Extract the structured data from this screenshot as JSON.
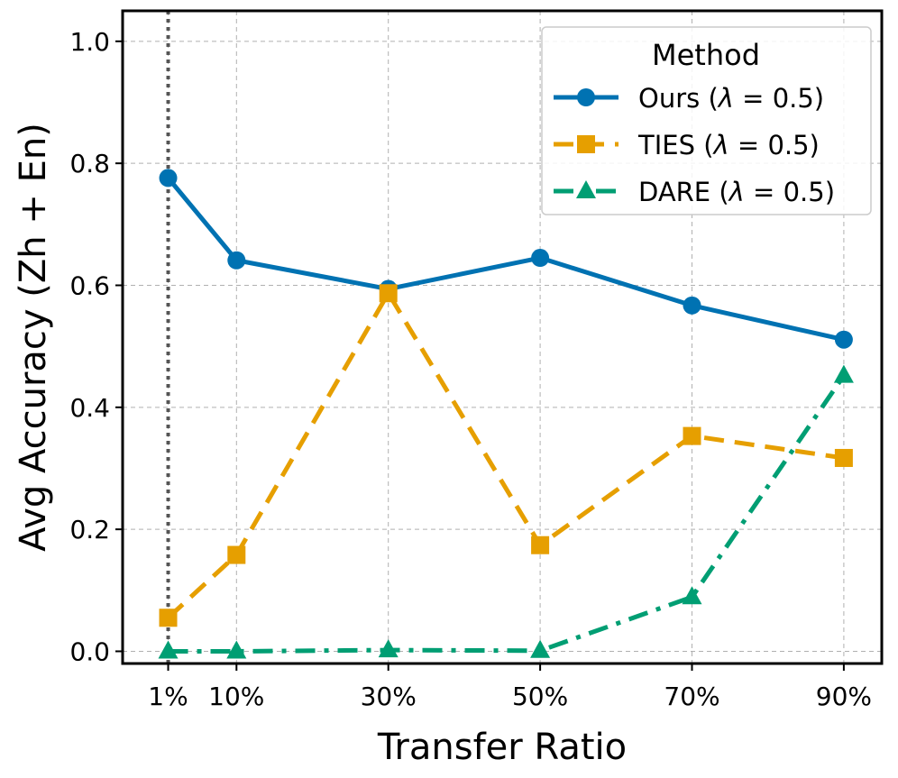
{
  "chart_data": {
    "type": "line",
    "title": "",
    "xlabel": "Transfer Ratio",
    "ylabel": "Avg Accuracy (Zh + En)",
    "categories": [
      "1%",
      "10%",
      "30%",
      "50%",
      "70%",
      "90%"
    ],
    "x": [
      1,
      10,
      30,
      50,
      70,
      90
    ],
    "xlim": [
      -5,
      95
    ],
    "ylim": [
      -0.02,
      1.05
    ],
    "yticks": [
      0.0,
      0.2,
      0.4,
      0.6,
      0.8,
      1.0
    ],
    "ytick_labels": [
      "0.0",
      "0.2",
      "0.4",
      "0.6",
      "0.8",
      "1.0"
    ],
    "grid": true,
    "reference_line": {
      "x": 1,
      "style": "dotted",
      "color": "#555555"
    },
    "legend": {
      "title": "Method",
      "position": "top-right"
    },
    "series": [
      {
        "name": "Ours (λ = 0.5)",
        "name_prefix": "Ours (",
        "name_suffix": " = 0.5)",
        "values": [
          0.776,
          0.641,
          0.594,
          0.645,
          0.567,
          0.511
        ],
        "color": "#0072B2",
        "marker": "circle",
        "linestyle": "solid"
      },
      {
        "name": "TIES (λ = 0.5)",
        "name_prefix": "TIES (",
        "name_suffix": " = 0.5)",
        "values": [
          0.055,
          0.158,
          0.587,
          0.174,
          0.353,
          0.317
        ],
        "color": "#E69F00",
        "marker": "square",
        "linestyle": "dashed"
      },
      {
        "name": "DARE (λ = 0.5)",
        "name_prefix": "DARE (",
        "name_suffix": " = 0.5)",
        "values": [
          0.0,
          0.0,
          0.002,
          0.001,
          0.089,
          0.452
        ],
        "color": "#009E73",
        "marker": "triangle",
        "linestyle": "dashdot"
      }
    ]
  }
}
